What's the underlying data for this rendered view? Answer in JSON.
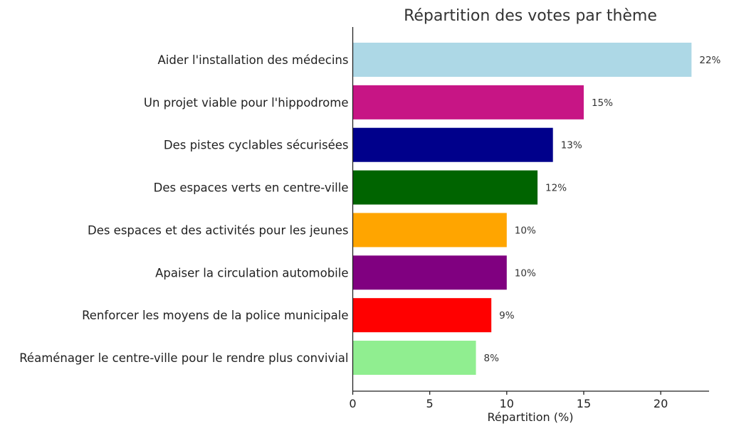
{
  "chart_data": {
    "type": "bar",
    "orientation": "horizontal",
    "title": "Répartition des votes par thème",
    "xlabel": "Répartition (%)",
    "ylabel": "",
    "xlim": [
      0,
      23
    ],
    "xticks": [
      0,
      5,
      10,
      15,
      20
    ],
    "grid": false,
    "categories": [
      "Aider l'installation des médecins",
      "Un projet viable pour l'hippodrome",
      "Des pistes cyclables sécurisées",
      "Des espaces verts en centre-ville",
      "Des espaces et des activités pour les jeunes",
      "Apaiser la circulation automobile",
      "Renforcer les moyens de la police municipale",
      "Réaménager le centre-ville pour le rendre plus convivial"
    ],
    "values": [
      22,
      15,
      13,
      12,
      10,
      10,
      9,
      8
    ],
    "value_labels": [
      "22%",
      "15%",
      "13%",
      "12%",
      "10%",
      "10%",
      "9%",
      "8%"
    ],
    "colors": [
      "#add8e6",
      "#c71585",
      "#00008b",
      "#006400",
      "#ffa500",
      "#800080",
      "#ff0000",
      "#90ee90"
    ]
  }
}
